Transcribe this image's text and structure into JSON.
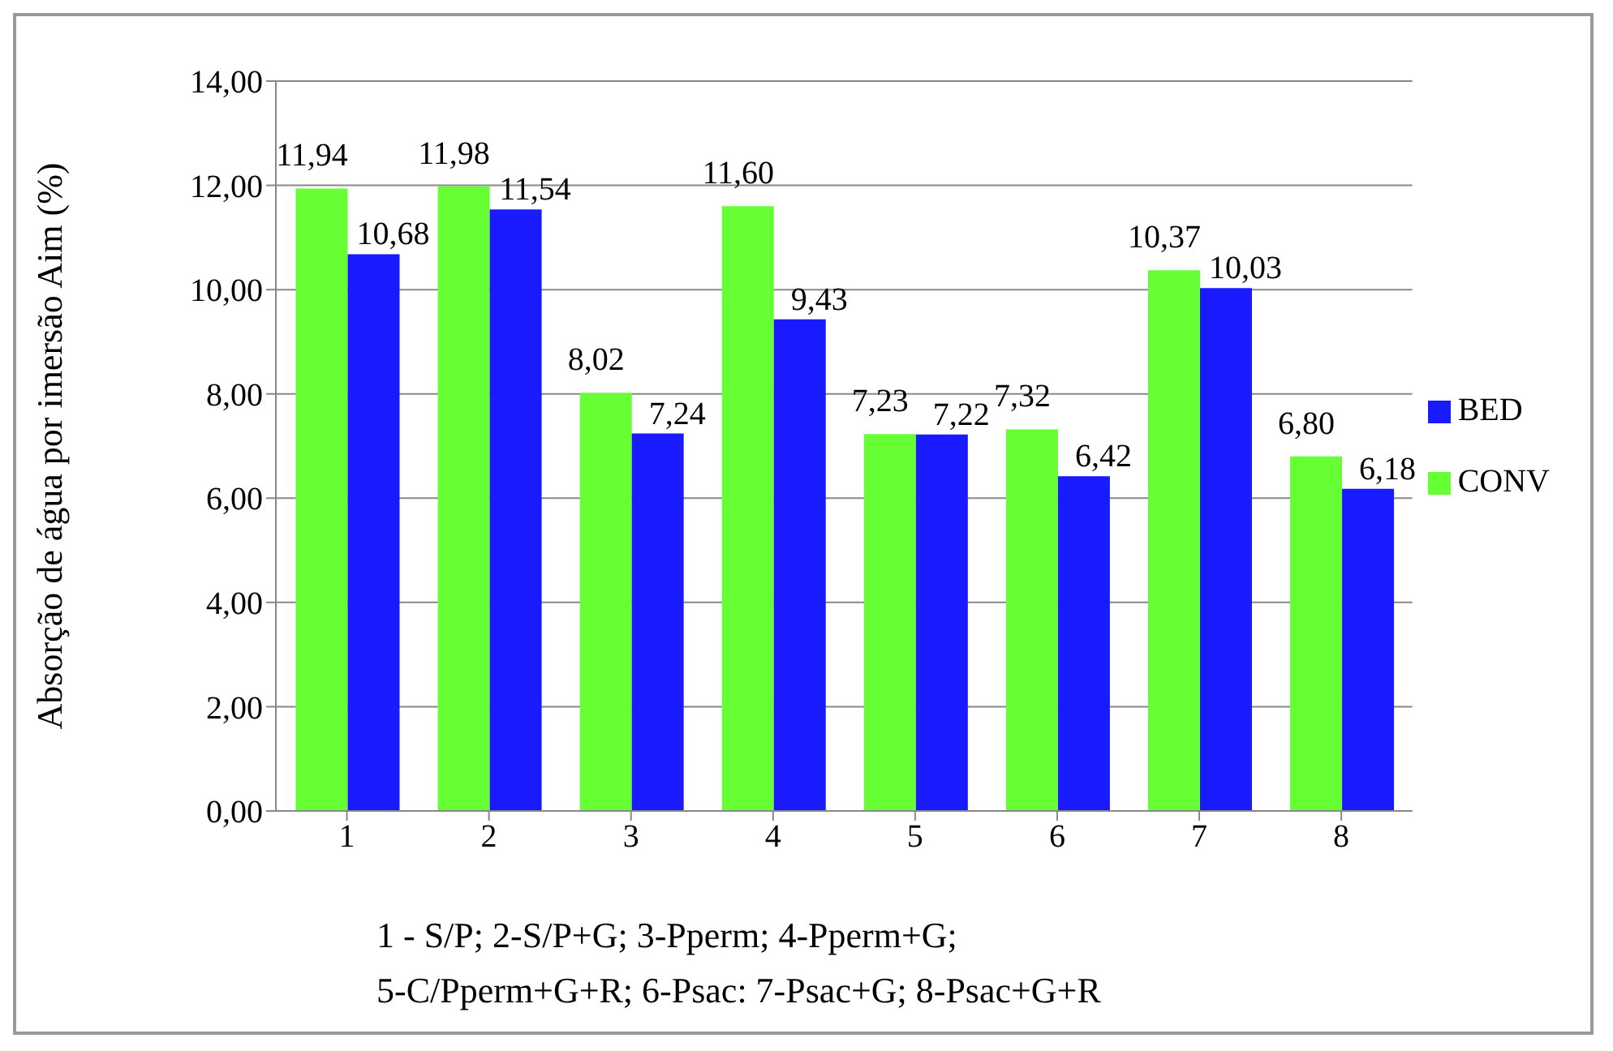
{
  "chart_data": {
    "type": "bar",
    "ylabel": "Absorção de água por imersão Aim (%)",
    "categories": [
      "1",
      "2",
      "3",
      "4",
      "5",
      "6",
      "7",
      "8"
    ],
    "series": [
      {
        "name": "CONV",
        "color": "#66ff33",
        "values": [
          11.94,
          11.98,
          8.02,
          11.6,
          7.23,
          7.32,
          10.37,
          6.8
        ],
        "value_labels": [
          "11,94",
          "11,98",
          "8,02",
          "11,60",
          "7,23",
          "7,32",
          "10,37",
          "6,80"
        ]
      },
      {
        "name": "BED",
        "color": "#1a1aff",
        "values": [
          10.68,
          11.54,
          7.24,
          9.43,
          7.22,
          6.42,
          10.03,
          6.18
        ],
        "value_labels": [
          "10,68",
          "11,54",
          "7,24",
          "9,43",
          "7,22",
          "6,42",
          "10,03",
          "6,18"
        ]
      }
    ],
    "ylim": [
      0,
      14
    ],
    "yticks": [
      {
        "value": 0,
        "label": "0,00"
      },
      {
        "value": 2,
        "label": "2,00"
      },
      {
        "value": 4,
        "label": "4,00"
      },
      {
        "value": 6,
        "label": "6,00"
      },
      {
        "value": 8,
        "label": "8,00"
      },
      {
        "value": 10,
        "label": "10,00"
      },
      {
        "value": 12,
        "label": "12,00"
      },
      {
        "value": 14,
        "label": "14,00"
      }
    ],
    "grid": "y",
    "legend": "right",
    "annotations": [
      "1 - S/P; 2-S/P+G; 3-Pperm; 4-Pperm+G;",
      "5-C/Pperm+G+R; 6-Psac: 7-Psac+G; 8-Psac+G+R"
    ]
  }
}
